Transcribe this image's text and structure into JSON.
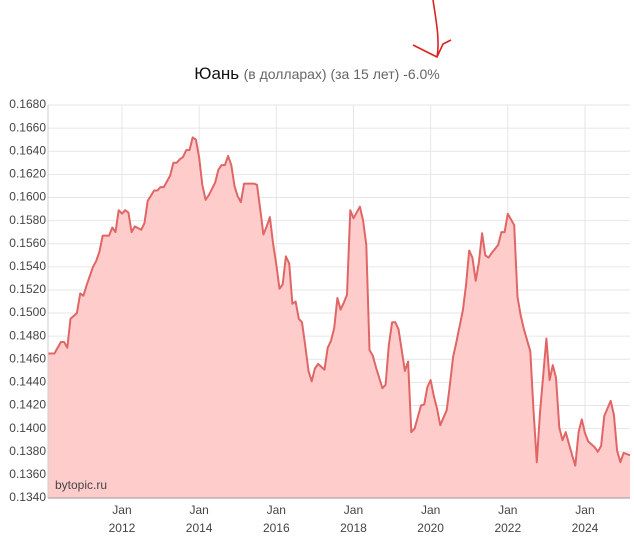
{
  "chart_data": {
    "type": "area",
    "title": "Юань",
    "subtitle": "(в долларах) (за 15 лет) -6.0%",
    "annotation": "bytopic.ru",
    "color": "#e06666",
    "area_color": "#ffcccc",
    "grid": true,
    "x": [
      "2010-02",
      "2010-04",
      "2010-06",
      "2010-07",
      "2010-08",
      "2010-09",
      "2010-11",
      "2010-12",
      "2011-01",
      "2011-02",
      "2011-04",
      "2011-05",
      "2011-06",
      "2011-07",
      "2011-09",
      "2011-10",
      "2011-11",
      "2011-12",
      "2012-01",
      "2012-02",
      "2012-03",
      "2012-04",
      "2012-05",
      "2012-07",
      "2012-08",
      "2012-09",
      "2012-11",
      "2012-12",
      "2013-01",
      "2013-02",
      "2013-04",
      "2013-05",
      "2013-06",
      "2013-07",
      "2013-08",
      "2013-09",
      "2013-10",
      "2013-11",
      "2013-12",
      "2014-01",
      "2014-02",
      "2014-03",
      "2014-04",
      "2014-06",
      "2014-07",
      "2014-08",
      "2014-09",
      "2014-10",
      "2014-11",
      "2014-12",
      "2015-01",
      "2015-02",
      "2015-03",
      "2015-04",
      "2015-06",
      "2015-07",
      "2015-08",
      "2015-09",
      "2015-10",
      "2015-11",
      "2015-12",
      "2016-01",
      "2016-02",
      "2016-03",
      "2016-04",
      "2016-05",
      "2016-06",
      "2016-07",
      "2016-08",
      "2016-09",
      "2016-10",
      "2016-11",
      "2016-12",
      "2017-01",
      "2017-02",
      "2017-04",
      "2017-05",
      "2017-06",
      "2017-07",
      "2017-08",
      "2017-09",
      "2017-10",
      "2017-11",
      "2017-12",
      "2018-01",
      "2018-03",
      "2018-04",
      "2018-05",
      "2018-06",
      "2018-07",
      "2018-08",
      "2018-10",
      "2018-11",
      "2018-12",
      "2019-01",
      "2019-02",
      "2019-03",
      "2019-05",
      "2019-06",
      "2019-07",
      "2019-08",
      "2019-10",
      "2019-11",
      "2019-12",
      "2020-01",
      "2020-02",
      "2020-03",
      "2020-04",
      "2020-06",
      "2020-07",
      "2020-08",
      "2020-09",
      "2020-11",
      "2020-12",
      "2021-01",
      "2021-02",
      "2021-03",
      "2021-04",
      "2021-05",
      "2021-06",
      "2021-07",
      "2021-08",
      "2021-10",
      "2021-11",
      "2021-12",
      "2022-01",
      "2022-03",
      "2022-04",
      "2022-05",
      "2022-06",
      "2022-08",
      "2022-09",
      "2022-10",
      "2022-11",
      "2022-12",
      "2023-01",
      "2023-02",
      "2023-03",
      "2023-04",
      "2023-05",
      "2023-06",
      "2023-07",
      "2023-09",
      "2023-10",
      "2023-11",
      "2023-12",
      "2024-01",
      "2024-02",
      "2024-04",
      "2024-05",
      "2024-06",
      "2024-07",
      "2024-09",
      "2024-10",
      "2024-11",
      "2024-12",
      "2025-01",
      "2025-03"
    ],
    "values": [
      0.1465,
      0.1465,
      0.1475,
      0.1475,
      0.147,
      0.1495,
      0.15,
      0.1517,
      0.1515,
      0.1524,
      0.154,
      0.1545,
      0.1553,
      0.1567,
      0.1567,
      0.1574,
      0.157,
      0.1589,
      0.1586,
      0.1589,
      0.1587,
      0.157,
      0.1575,
      0.1572,
      0.1578,
      0.1597,
      0.1606,
      0.1606,
      0.1609,
      0.1609,
      0.1619,
      0.163,
      0.163,
      0.1633,
      0.1635,
      0.1641,
      0.1641,
      0.1652,
      0.165,
      0.1635,
      0.1611,
      0.1598,
      0.1602,
      0.1613,
      0.1624,
      0.1628,
      0.1628,
      0.1636,
      0.1628,
      0.161,
      0.1601,
      0.1596,
      0.1612,
      0.1612,
      0.1612,
      0.1611,
      0.159,
      0.1568,
      0.1575,
      0.1583,
      0.156,
      0.1542,
      0.1521,
      0.1525,
      0.1549,
      0.1543,
      0.1508,
      0.151,
      0.1495,
      0.1492,
      0.1472,
      0.145,
      0.1441,
      0.1452,
      0.1456,
      0.1451,
      0.147,
      0.1476,
      0.1487,
      0.1513,
      0.1503,
      0.1509,
      0.1516,
      0.1589,
      0.1582,
      0.1592,
      0.158,
      0.1559,
      0.1468,
      0.1463,
      0.1453,
      0.1435,
      0.1438,
      0.1472,
      0.1492,
      0.1492,
      0.1486,
      0.145,
      0.1458,
      0.1397,
      0.14,
      0.142,
      0.1421,
      0.1436,
      0.1442,
      0.1428,
      0.1417,
      0.1403,
      0.1416,
      0.1438,
      0.1462,
      0.1475,
      0.1502,
      0.1524,
      0.1554,
      0.1548,
      0.1528,
      0.1544,
      0.1569,
      0.155,
      0.1548,
      0.1552,
      0.1559,
      0.157,
      0.157,
      0.1586,
      0.1576,
      0.1514,
      0.1498,
      0.1486,
      0.1467,
      0.1416,
      0.1371,
      0.1414,
      0.1446,
      0.1478,
      0.1442,
      0.1455,
      0.1444,
      0.1401,
      0.139,
      0.1397,
      0.1377,
      0.1368,
      0.1397,
      0.1408,
      0.1396,
      0.1389,
      0.1384,
      0.138,
      0.1385,
      0.1411,
      0.1424,
      0.1412,
      0.1381,
      0.1371,
      0.1379,
      0.1377
    ],
    "xlim": [
      "2010-02",
      "2025-03"
    ],
    "xticks": [
      {
        "value": "2012-01",
        "label": "Jan 2012"
      },
      {
        "value": "2014-01",
        "label": "Jan 2014"
      },
      {
        "value": "2016-01",
        "label": "Jan 2016"
      },
      {
        "value": "2018-01",
        "label": "Jan 2018"
      },
      {
        "value": "2020-01",
        "label": "Jan 2020"
      },
      {
        "value": "2022-01",
        "label": "Jan 2022"
      },
      {
        "value": "2024-01",
        "label": "Jan 2024"
      }
    ],
    "ylim": [
      0.134,
      0.168
    ],
    "yticks": [
      {
        "value": 0.134,
        "label": "0.1340"
      },
      {
        "value": 0.136,
        "label": "0.1360"
      },
      {
        "value": 0.138,
        "label": "0.1380"
      },
      {
        "value": 0.14,
        "label": "0.1400"
      },
      {
        "value": 0.142,
        "label": "0.1420"
      },
      {
        "value": 0.144,
        "label": "0.1440"
      },
      {
        "value": 0.146,
        "label": "0.1460"
      },
      {
        "value": 0.148,
        "label": "0.1480"
      },
      {
        "value": 0.15,
        "label": "0.1500"
      },
      {
        "value": 0.152,
        "label": "0.1520"
      },
      {
        "value": 0.154,
        "label": "0.1540"
      },
      {
        "value": 0.156,
        "label": "0.1560"
      },
      {
        "value": 0.158,
        "label": "0.1580"
      },
      {
        "value": 0.16,
        "label": "0.1600"
      },
      {
        "value": 0.162,
        "label": "0.1620"
      },
      {
        "value": 0.164,
        "label": "0.1640"
      },
      {
        "value": 0.166,
        "label": "0.1660"
      },
      {
        "value": 0.168,
        "label": "0.1680"
      }
    ]
  }
}
